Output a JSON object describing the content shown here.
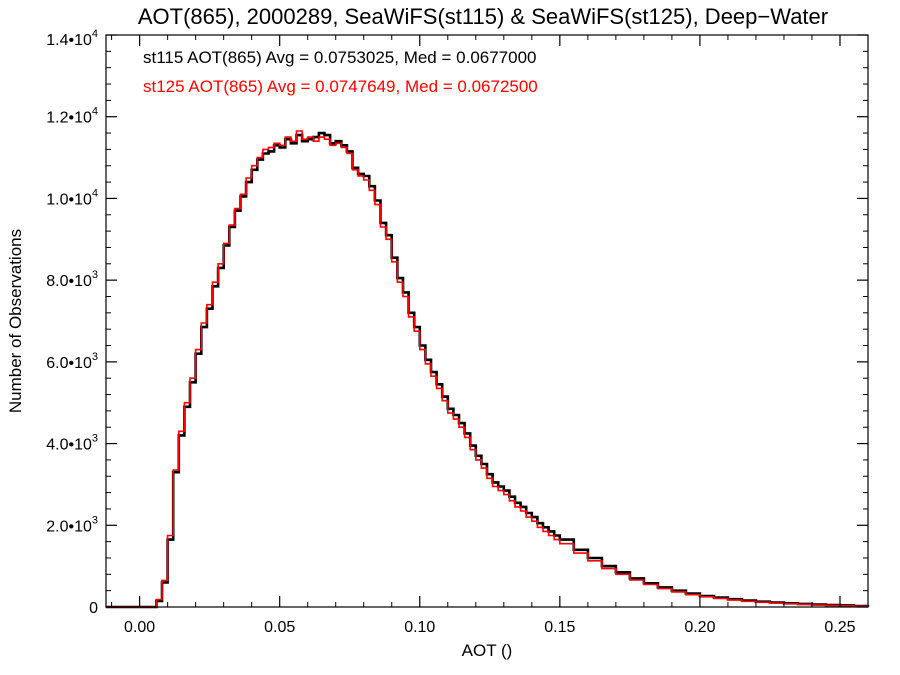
{
  "chart_data": {
    "type": "line",
    "title": "AOT(865), 2000289, SeaWiFS(st115) & SeaWiFS(st125), Deep−Water",
    "xlabel": "AOT ()",
    "ylabel": "Number of Observations",
    "xlim": [
      -0.012,
      0.26
    ],
    "ylim": [
      0,
      14000
    ],
    "grid": false,
    "x_ticks": [
      {
        "value": 0.0,
        "label": "0.00"
      },
      {
        "value": 0.05,
        "label": "0.05"
      },
      {
        "value": 0.1,
        "label": "0.10"
      },
      {
        "value": 0.15,
        "label": "0.15"
      },
      {
        "value": 0.2,
        "label": "0.20"
      },
      {
        "value": 0.25,
        "label": "0.25"
      }
    ],
    "y_ticks": [
      {
        "value": 0,
        "mant": "0",
        "exp": ""
      },
      {
        "value": 2000,
        "mant": "2.0•10",
        "exp": "3"
      },
      {
        "value": 4000,
        "mant": "4.0•10",
        "exp": "3"
      },
      {
        "value": 6000,
        "mant": "6.0•10",
        "exp": "3"
      },
      {
        "value": 8000,
        "mant": "8.0•10",
        "exp": "3"
      },
      {
        "value": 10000,
        "mant": "1.0•10",
        "exp": "4"
      },
      {
        "value": 12000,
        "mant": "1.2•10",
        "exp": "4"
      },
      {
        "value": 14000,
        "mant": "1.4•10",
        "exp": "4"
      }
    ],
    "annotations": [
      {
        "text": "st115 AOT(865) Avg = 0.0753025, Med = 0.0677000",
        "color": "#000000"
      },
      {
        "text": "st125 AOT(865) Avg = 0.0747649, Med = 0.0672500",
        "color": "#ff0000"
      }
    ],
    "series": [
      {
        "color": "#000000",
        "x": [
          -0.012,
          0.0,
          0.002,
          0.004,
          0.006,
          0.008,
          0.01,
          0.012,
          0.014,
          0.016,
          0.018,
          0.02,
          0.022,
          0.024,
          0.026,
          0.028,
          0.03,
          0.032,
          0.034,
          0.036,
          0.038,
          0.04,
          0.042,
          0.044,
          0.046,
          0.048,
          0.05,
          0.052,
          0.054,
          0.056,
          0.058,
          0.06,
          0.062,
          0.064,
          0.066,
          0.068,
          0.07,
          0.072,
          0.074,
          0.076,
          0.078,
          0.08,
          0.082,
          0.084,
          0.086,
          0.088,
          0.09,
          0.092,
          0.094,
          0.096,
          0.098,
          0.1,
          0.102,
          0.104,
          0.106,
          0.108,
          0.11,
          0.112,
          0.114,
          0.116,
          0.118,
          0.12,
          0.122,
          0.124,
          0.126,
          0.128,
          0.13,
          0.132,
          0.134,
          0.136,
          0.138,
          0.14,
          0.142,
          0.144,
          0.146,
          0.148,
          0.15,
          0.155,
          0.16,
          0.165,
          0.17,
          0.175,
          0.18,
          0.185,
          0.19,
          0.195,
          0.2,
          0.205,
          0.21,
          0.215,
          0.22,
          0.225,
          0.23,
          0.235,
          0.24,
          0.245,
          0.25,
          0.255,
          0.26
        ],
        "values": [
          0,
          0,
          0,
          0,
          150,
          600,
          1650,
          3300,
          4200,
          4900,
          5500,
          6200,
          6850,
          7300,
          7850,
          8300,
          8850,
          9300,
          9700,
          10050,
          10400,
          10700,
          10950,
          11100,
          11150,
          11300,
          11250,
          11450,
          11350,
          11550,
          11400,
          11450,
          11500,
          11600,
          11550,
          11350,
          11400,
          11300,
          11150,
          10750,
          10600,
          10550,
          10300,
          9950,
          9400,
          9100,
          8550,
          8050,
          7700,
          7200,
          6850,
          6400,
          6050,
          5750,
          5450,
          5150,
          4850,
          4700,
          4500,
          4250,
          3950,
          3700,
          3500,
          3250,
          3050,
          2950,
          2850,
          2700,
          2550,
          2450,
          2300,
          2200,
          2050,
          1950,
          1850,
          1750,
          1650,
          1400,
          1200,
          1000,
          850,
          700,
          580,
          480,
          400,
          330,
          270,
          230,
          190,
          160,
          130,
          110,
          90,
          75,
          60,
          50,
          40,
          25,
          10
        ]
      },
      {
        "color": "#ff0000",
        "x": [
          -0.012,
          0.0,
          0.002,
          0.004,
          0.006,
          0.008,
          0.01,
          0.012,
          0.014,
          0.016,
          0.018,
          0.02,
          0.022,
          0.024,
          0.026,
          0.028,
          0.03,
          0.032,
          0.034,
          0.036,
          0.038,
          0.04,
          0.042,
          0.044,
          0.046,
          0.048,
          0.05,
          0.052,
          0.054,
          0.056,
          0.058,
          0.06,
          0.062,
          0.064,
          0.066,
          0.068,
          0.07,
          0.072,
          0.074,
          0.076,
          0.078,
          0.08,
          0.082,
          0.084,
          0.086,
          0.088,
          0.09,
          0.092,
          0.094,
          0.096,
          0.098,
          0.1,
          0.102,
          0.104,
          0.106,
          0.108,
          0.11,
          0.112,
          0.114,
          0.116,
          0.118,
          0.12,
          0.122,
          0.124,
          0.126,
          0.128,
          0.13,
          0.132,
          0.134,
          0.136,
          0.138,
          0.14,
          0.142,
          0.144,
          0.146,
          0.148,
          0.15,
          0.155,
          0.16,
          0.165,
          0.17,
          0.175,
          0.18,
          0.185,
          0.19,
          0.195,
          0.2,
          0.205,
          0.21,
          0.215,
          0.22,
          0.225,
          0.23,
          0.235,
          0.24,
          0.245,
          0.25,
          0.255,
          0.26
        ],
        "values": [
          0,
          0,
          0,
          0,
          180,
          650,
          1750,
          3350,
          4300,
          5000,
          5600,
          6300,
          6950,
          7400,
          7950,
          8400,
          8900,
          9350,
          9750,
          10100,
          10500,
          10800,
          11000,
          11200,
          11250,
          11350,
          11300,
          11500,
          11400,
          11650,
          11450,
          11500,
          11400,
          11500,
          11450,
          11300,
          11350,
          11250,
          11100,
          10700,
          10550,
          10450,
          10200,
          9850,
          9300,
          9000,
          8450,
          7950,
          7600,
          7100,
          6750,
          6300,
          5950,
          5650,
          5350,
          5050,
          4750,
          4600,
          4400,
          4150,
          3850,
          3600,
          3400,
          3150,
          2950,
          2850,
          2750,
          2600,
          2450,
          2350,
          2200,
          2100,
          1950,
          1850,
          1750,
          1650,
          1550,
          1320,
          1130,
          940,
          800,
          660,
          550,
          450,
          370,
          300,
          250,
          210,
          170,
          140,
          115,
          95,
          80,
          65,
          50,
          40,
          30,
          18,
          5
        ]
      }
    ]
  }
}
